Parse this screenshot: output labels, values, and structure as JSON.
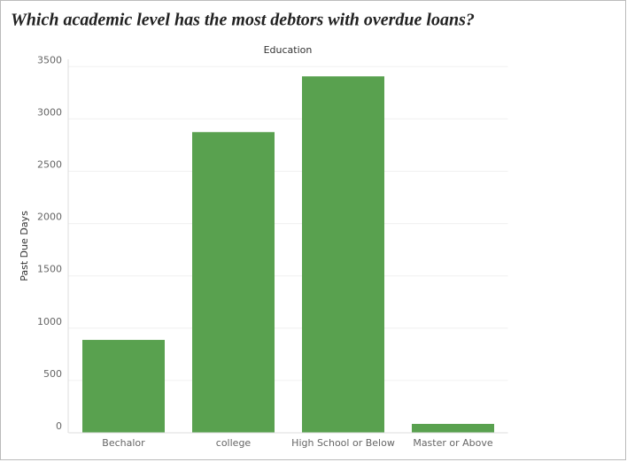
{
  "chart_data": {
    "type": "bar",
    "title": "Which academic level has the most debtors with overdue loans?",
    "header": "Education",
    "y_label": "Past Due Days",
    "categories": [
      "Bechalor",
      "college",
      "High School or Below",
      "Master or Above"
    ],
    "values": [
      888,
      2874,
      3407,
      85
    ],
    "color": "#59a14f",
    "ylim": [
      0,
      3570
    ],
    "yticks": [
      0,
      500,
      1000,
      1500,
      2000,
      2500,
      3000,
      3500
    ],
    "grid": true
  }
}
